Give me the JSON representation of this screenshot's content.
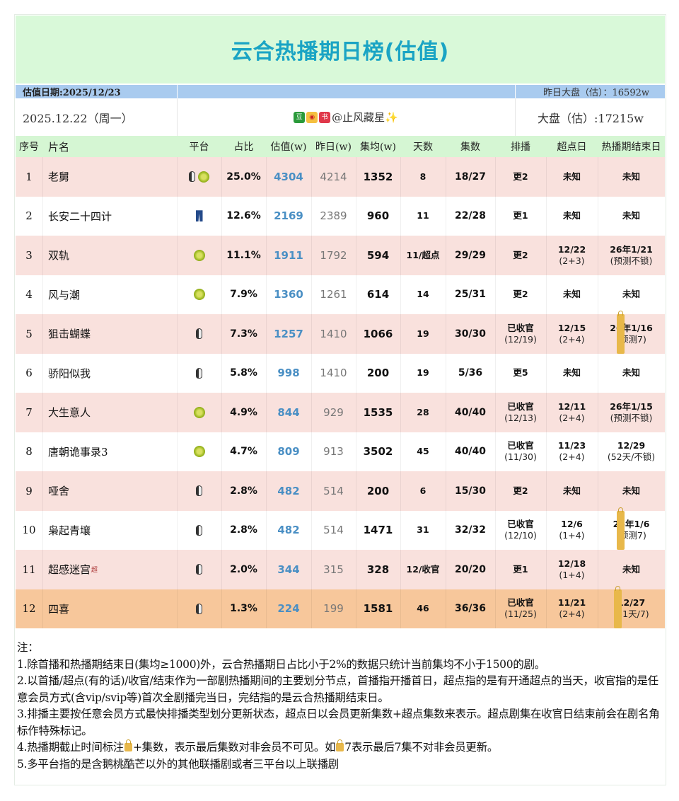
{
  "title": "云合热播期日榜(估值)",
  "info": {
    "estimate_date": "估值日期:2025/12/23",
    "yesterday_total": "昨日大盘（估）：16592w",
    "date": "2025.12.22（周一）",
    "author": "@止风藏星✨",
    "total": "大盘（估）:17215w"
  },
  "headers": [
    "序号",
    "片名",
    "平台",
    "占比",
    "估值(w)",
    "昨日(w)",
    "集均(w)",
    "天数",
    "集数",
    "排播",
    "超点日",
    "热播期结束日"
  ],
  "rows": [
    {
      "no": "1",
      "name": "老舅",
      "sup": "",
      "platforms": [
        "penguin",
        "kiwi"
      ],
      "share": "25.0%",
      "est": "4304",
      "yesterday": "4214",
      "avg": "1352",
      "days": "8",
      "eps": "18/27",
      "sched": "更2",
      "sched2": "",
      "svip": "未知",
      "svip2": "",
      "end": "未知",
      "end2": ""
    },
    {
      "no": "2",
      "name": "长安二十四计",
      "sup": "",
      "platforms": [
        "jeans"
      ],
      "share": "12.6%",
      "est": "2169",
      "yesterday": "2389",
      "avg": "960",
      "days": "11",
      "eps": "22/28",
      "sched": "更1",
      "sched2": "",
      "svip": "未知",
      "svip2": "",
      "end": "未知",
      "end2": ""
    },
    {
      "no": "3",
      "name": "双轨",
      "sup": "",
      "platforms": [
        "kiwi"
      ],
      "share": "11.1%",
      "est": "1911",
      "yesterday": "1792",
      "avg": "594",
      "days": "11/超点",
      "eps": "29/29",
      "sched": "更2",
      "sched2": "",
      "svip": "12/22",
      "svip2": "(2+3)",
      "end": "26年1/21",
      "end2": "(预测不锁)"
    },
    {
      "no": "4",
      "name": "风与潮",
      "sup": "",
      "platforms": [
        "kiwi"
      ],
      "share": "7.9%",
      "est": "1360",
      "yesterday": "1261",
      "avg": "614",
      "days": "14",
      "eps": "25/31",
      "sched": "更2",
      "sched2": "",
      "svip": "未知",
      "svip2": "",
      "end": "未知",
      "end2": ""
    },
    {
      "no": "5",
      "name": "狙击蝴蝶",
      "sup": "",
      "platforms": [
        "penguin"
      ],
      "share": "7.3%",
      "est": "1257",
      "yesterday": "1410",
      "avg": "1066",
      "days": "19",
      "eps": "30/30",
      "sched": "已收官",
      "sched2": "(12/19)",
      "svip": "12/15",
      "svip2": "(2+4)",
      "end": "26年1/16",
      "end2": "(预测🔒7)"
    },
    {
      "no": "6",
      "name": "骄阳似我",
      "sup": "",
      "platforms": [
        "penguin"
      ],
      "share": "5.8%",
      "est": "998",
      "yesterday": "1410",
      "avg": "200",
      "days": "19",
      "eps": "5/36",
      "sched": "更5",
      "sched2": "",
      "svip": "未知",
      "svip2": "",
      "end": "未知",
      "end2": ""
    },
    {
      "no": "7",
      "name": "大生意人",
      "sup": "",
      "platforms": [
        "kiwi"
      ],
      "share": "4.9%",
      "est": "844",
      "yesterday": "929",
      "avg": "1535",
      "days": "28",
      "eps": "40/40",
      "sched": "已收官",
      "sched2": "(12/13)",
      "svip": "12/11",
      "svip2": "(2+4)",
      "end": "26年1/15",
      "end2": "(预测不锁)"
    },
    {
      "no": "8",
      "name": "唐朝诡事录3",
      "sup": "",
      "platforms": [
        "kiwi"
      ],
      "share": "4.7%",
      "est": "809",
      "yesterday": "913",
      "avg": "3502",
      "days": "45",
      "eps": "40/40",
      "sched": "已收官",
      "sched2": "(11/30)",
      "svip": "11/23",
      "svip2": "(2+4)",
      "end": "12/29",
      "end2": "(52天/不锁)"
    },
    {
      "no": "9",
      "name": "哑舍",
      "sup": "",
      "platforms": [
        "penguin"
      ],
      "share": "2.8%",
      "est": "482",
      "yesterday": "514",
      "avg": "200",
      "days": "6",
      "eps": "15/30",
      "sched": "更2",
      "sched2": "",
      "svip": "未知",
      "svip2": "",
      "end": "未知",
      "end2": ""
    },
    {
      "no": "10",
      "name": "枭起青壤",
      "sup": "",
      "platforms": [
        "penguin"
      ],
      "share": "2.8%",
      "est": "482",
      "yesterday": "514",
      "avg": "1471",
      "days": "31",
      "eps": "32/32",
      "sched": "已收官",
      "sched2": "(12/10)",
      "svip": "12/6",
      "svip2": "(1+4)",
      "end": "26年1/6",
      "end2": "(预测🔒7)"
    },
    {
      "no": "11",
      "name": "超感迷宫",
      "sup": "超",
      "platforms": [
        "penguin"
      ],
      "share": "2.0%",
      "est": "344",
      "yesterday": "315",
      "avg": "328",
      "days": "12/收官",
      "eps": "20/20",
      "sched": "更1",
      "sched2": "",
      "svip": "12/18",
      "svip2": "(1+4)",
      "end": "未知",
      "end2": ""
    },
    {
      "no": "12",
      "name": "四喜",
      "sup": "",
      "platforms": [
        "penguin"
      ],
      "share": "1.3%",
      "est": "224",
      "yesterday": "199",
      "avg": "1581",
      "days": "46",
      "eps": "36/36",
      "sched": "已收官",
      "sched2": "(11/25)",
      "svip": "11/21",
      "svip2": "(2+4)",
      "end": "12/27",
      "end2": "(51天/🔒7)"
    }
  ],
  "notes": [
    "注：",
    "1.除首播和热播期结束日(集均≥1000)外，云合热播期日占比小于2%的数据只统计当前集均不小于1500的剧。",
    "2.以首播/超点(有的话)/收官/结束作为一部剧热播期间的主要划分节点，首播指开播首日，超点指的是有开通超点的当天，收官指的是任意会员方式(含vip/svip等)首次全剧播完当日，完结指的是云合热播期结束日。",
    "3.排播主要按任意会员方式最快排播类型划分更新状态，超点日以会员更新集数+超点集数来表示。超点剧集在收官日结束前会在剧名角标作特殊标记。",
    "4.热播期截止时间标注🔒+集数，表示最后集数对非会员不可见。如🔒7表示最后7集不对非会员更新。",
    "5.多平台指的是含鹅桃酷芒以外的其他联播剧或者三平台以上联播剧"
  ],
  "colors": {
    "title": "#1aa4c4",
    "title_bg": "#d9f9d9",
    "bar": "#a9cbef",
    "header_bg": "#d5f6d3",
    "row_pink": "#f9e1dd",
    "row_highlight": "#f7c79b",
    "estimate": "#4a8fc4"
  }
}
